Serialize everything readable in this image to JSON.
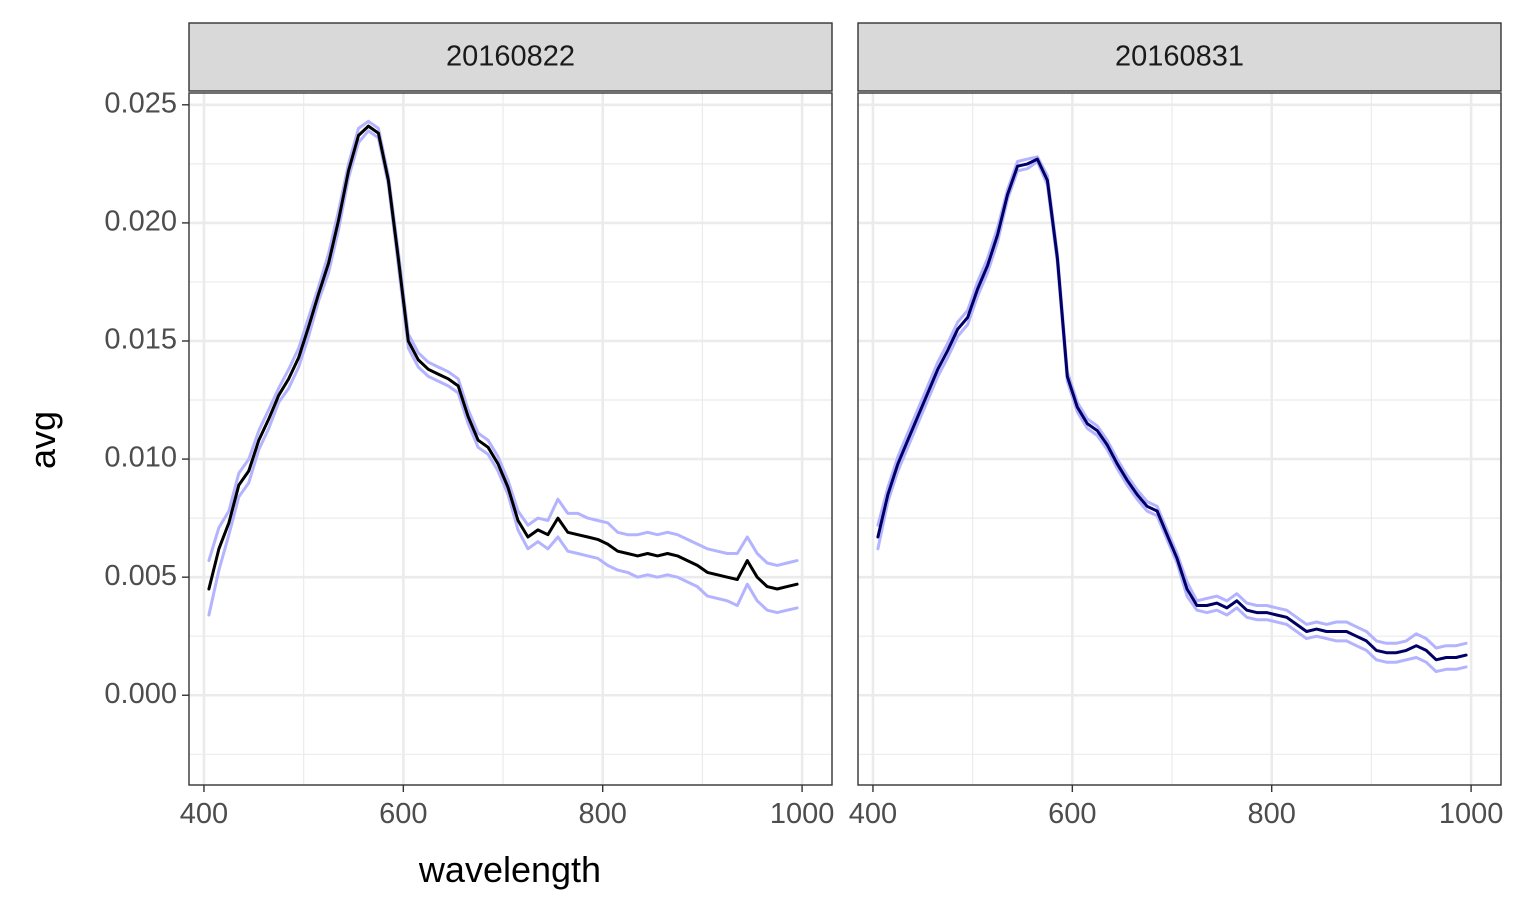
{
  "chart_data": {
    "type": "line",
    "xlabel": "wavelength",
    "ylabel": "avg",
    "xlim": [
      385,
      1030
    ],
    "ylim": [
      -0.0038,
      0.0255
    ],
    "x_ticks": [
      400,
      600,
      800,
      1000
    ],
    "x_tick_labels": [
      "400",
      "600",
      "800",
      "1000"
    ],
    "y_ticks": [
      0.0,
      0.005,
      0.01,
      0.015,
      0.02,
      0.025
    ],
    "y_tick_labels": [
      "0.000",
      "0.005",
      "0.010",
      "0.015",
      "0.020",
      "0.025"
    ],
    "grid": true,
    "colors": {
      "mean_line": "#000000",
      "band_line": "#b3b3ff",
      "overlap_line": "#000066",
      "strip_fill": "#d9d9d9",
      "panel_border": "#333333",
      "grid_major": "#ebebeb"
    },
    "facets": [
      {
        "label": "20160822",
        "x": [
          405,
          415,
          425,
          435,
          445,
          455,
          465,
          475,
          485,
          495,
          505,
          515,
          525,
          535,
          545,
          555,
          565,
          575,
          585,
          595,
          605,
          615,
          625,
          635,
          645,
          655,
          665,
          675,
          685,
          695,
          705,
          715,
          725,
          735,
          745,
          755,
          765,
          775,
          785,
          795,
          805,
          815,
          825,
          835,
          845,
          855,
          865,
          875,
          885,
          895,
          905,
          915,
          925,
          935,
          945,
          955,
          965,
          975,
          985,
          995
        ],
        "series": [
          {
            "values": [
              0.0045,
              0.0062,
              0.0073,
              0.0089,
              0.0095,
              0.0108,
              0.0117,
              0.0127,
              0.0134,
              0.0143,
              0.0156,
              0.017,
              0.0183,
              0.0201,
              0.0222,
              0.0237,
              0.0241,
              0.0238,
              0.0218,
              0.0185,
              0.015,
              0.0142,
              0.0138,
              0.0136,
              0.0134,
              0.0131,
              0.0118,
              0.0108,
              0.0105,
              0.0098,
              0.0088,
              0.0074,
              0.0067,
              0.007,
              0.0068,
              0.0075,
              0.0069,
              0.0068,
              0.0067,
              0.0066,
              0.0064,
              0.0061,
              0.006,
              0.0059,
              0.006,
              0.0059,
              0.006,
              0.0059,
              0.0057,
              0.0055,
              0.0052,
              0.0051,
              0.005,
              0.0049,
              0.0057,
              0.005,
              0.0046,
              0.0045,
              0.0046,
              0.0047
            ]
          },
          {
            "values": [
              0.0057,
              0.0071,
              0.0078,
              0.0094,
              0.01,
              0.0112,
              0.0121,
              0.013,
              0.0138,
              0.0147,
              0.016,
              0.0173,
              0.0187,
              0.0205,
              0.0225,
              0.024,
              0.0243,
              0.024,
              0.022,
              0.0188,
              0.0153,
              0.0145,
              0.0141,
              0.0139,
              0.0137,
              0.0134,
              0.0121,
              0.0111,
              0.0108,
              0.0101,
              0.0091,
              0.0078,
              0.0072,
              0.0075,
              0.0074,
              0.0083,
              0.0077,
              0.0077,
              0.0075,
              0.0074,
              0.0073,
              0.0069,
              0.0068,
              0.0068,
              0.0069,
              0.0068,
              0.0069,
              0.0068,
              0.0066,
              0.0064,
              0.0062,
              0.0061,
              0.006,
              0.006,
              0.0067,
              0.006,
              0.0056,
              0.0055,
              0.0056,
              0.0057
            ]
          },
          {
            "values": [
              0.0034,
              0.0053,
              0.0068,
              0.0084,
              0.009,
              0.0104,
              0.0113,
              0.0124,
              0.013,
              0.0139,
              0.0152,
              0.0167,
              0.0179,
              0.0197,
              0.0219,
              0.0234,
              0.0239,
              0.0236,
              0.0216,
              0.0182,
              0.0147,
              0.0139,
              0.0135,
              0.0133,
              0.0131,
              0.0128,
              0.0115,
              0.0105,
              0.0102,
              0.0095,
              0.0085,
              0.007,
              0.0062,
              0.0065,
              0.0062,
              0.0067,
              0.0061,
              0.006,
              0.0059,
              0.0058,
              0.0055,
              0.0053,
              0.0052,
              0.005,
              0.0051,
              0.005,
              0.0051,
              0.005,
              0.0048,
              0.0046,
              0.0042,
              0.0041,
              0.004,
              0.0038,
              0.0047,
              0.004,
              0.0036,
              0.0035,
              0.0036,
              0.0037
            ]
          }
        ]
      },
      {
        "label": "20160831",
        "x": [
          405,
          415,
          425,
          435,
          445,
          455,
          465,
          475,
          485,
          495,
          505,
          515,
          525,
          535,
          545,
          555,
          565,
          575,
          585,
          595,
          605,
          615,
          625,
          635,
          645,
          655,
          665,
          675,
          685,
          695,
          705,
          715,
          725,
          735,
          745,
          755,
          765,
          775,
          785,
          795,
          805,
          815,
          825,
          835,
          845,
          855,
          865,
          875,
          885,
          895,
          905,
          915,
          925,
          935,
          945,
          955,
          965,
          975,
          985,
          995
        ],
        "series": [
          {
            "values": [
              0.0067,
              0.0085,
              0.0098,
              0.0108,
              0.0118,
              0.0128,
              0.0138,
              0.0146,
              0.0155,
              0.016,
              0.0172,
              0.0182,
              0.0195,
              0.0212,
              0.0224,
              0.0225,
              0.0227,
              0.0218,
              0.0185,
              0.0135,
              0.0122,
              0.0115,
              0.0112,
              0.0106,
              0.0098,
              0.0091,
              0.0085,
              0.008,
              0.0078,
              0.0068,
              0.0058,
              0.0045,
              0.0038,
              0.0038,
              0.0039,
              0.0037,
              0.004,
              0.0036,
              0.0035,
              0.0035,
              0.0034,
              0.0033,
              0.003,
              0.0027,
              0.0028,
              0.0027,
              0.0027,
              0.0027,
              0.0025,
              0.0023,
              0.0019,
              0.0018,
              0.0018,
              0.0019,
              0.0021,
              0.0019,
              0.0015,
              0.0016,
              0.0016,
              0.0017
            ]
          },
          {
            "values": [
              0.0072,
              0.0088,
              0.0101,
              0.0111,
              0.0121,
              0.0131,
              0.0141,
              0.0149,
              0.0158,
              0.0163,
              0.0175,
              0.0185,
              0.0198,
              0.0214,
              0.0226,
              0.0227,
              0.0228,
              0.022,
              0.0187,
              0.0137,
              0.0124,
              0.0117,
              0.0114,
              0.0108,
              0.01,
              0.0093,
              0.0087,
              0.0082,
              0.008,
              0.007,
              0.006,
              0.0048,
              0.004,
              0.0041,
              0.0042,
              0.004,
              0.0043,
              0.0039,
              0.0038,
              0.0038,
              0.0037,
              0.0036,
              0.0033,
              0.003,
              0.0031,
              0.003,
              0.0031,
              0.0031,
              0.0029,
              0.0027,
              0.0023,
              0.0022,
              0.0022,
              0.0023,
              0.0026,
              0.0024,
              0.002,
              0.0021,
              0.0021,
              0.0022
            ]
          },
          {
            "values": [
              0.0062,
              0.0082,
              0.0095,
              0.0105,
              0.0115,
              0.0125,
              0.0135,
              0.0143,
              0.0152,
              0.0157,
              0.0169,
              0.0179,
              0.0192,
              0.021,
              0.0222,
              0.0223,
              0.0226,
              0.0216,
              0.0183,
              0.0133,
              0.012,
              0.0113,
              0.011,
              0.0104,
              0.0096,
              0.0089,
              0.0083,
              0.0078,
              0.0076,
              0.0066,
              0.0056,
              0.0042,
              0.0036,
              0.0035,
              0.0036,
              0.0034,
              0.0037,
              0.0033,
              0.0032,
              0.0032,
              0.0031,
              0.003,
              0.0027,
              0.0024,
              0.0025,
              0.0024,
              0.0023,
              0.0023,
              0.0021,
              0.0019,
              0.0015,
              0.0014,
              0.0014,
              0.0015,
              0.0016,
              0.0014,
              0.001,
              0.0011,
              0.0011,
              0.0012
            ]
          }
        ]
      }
    ]
  }
}
